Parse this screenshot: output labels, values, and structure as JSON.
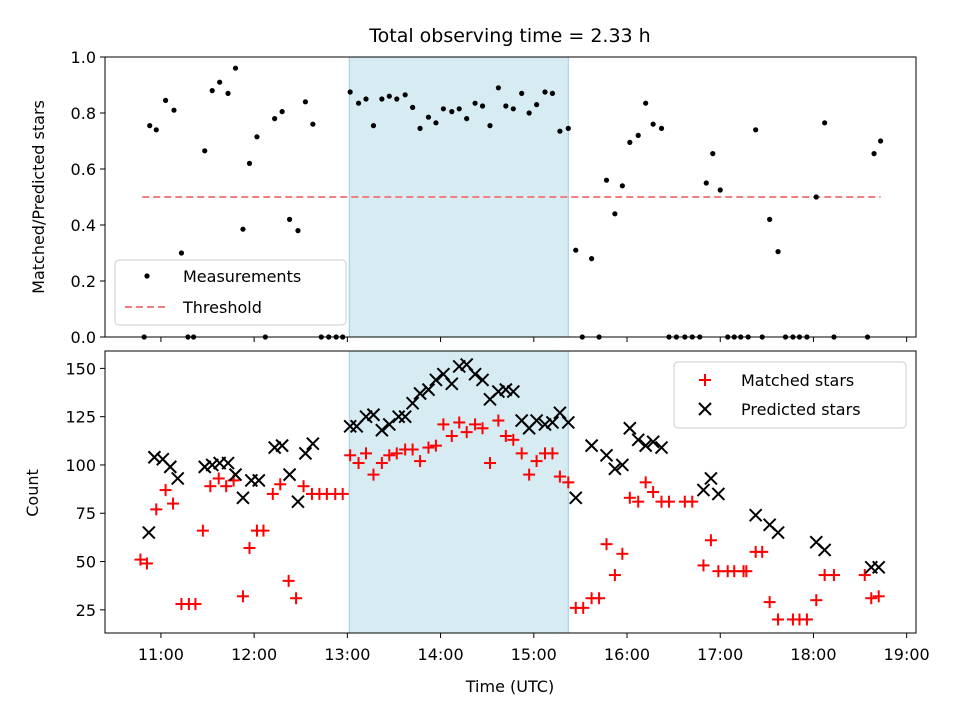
{
  "figure": {
    "title": "Total observing time = 2.33 h"
  },
  "chart_data": [
    {
      "type": "scatter",
      "panel": "top",
      "ylabel": "Matched/Predicted stars",
      "xlim": [
        10.4,
        19.1
      ],
      "ylim": [
        0,
        1.0
      ],
      "yticks": [
        0.0,
        0.2,
        0.4,
        0.6,
        0.8,
        1.0
      ],
      "ytick_labels": [
        "0.0",
        "0.2",
        "0.4",
        "0.6",
        "0.8",
        "1.0"
      ],
      "highlight_span": [
        13.02,
        15.37
      ],
      "highlight_color": "#add8e6",
      "legend": {
        "placement": "lower-left",
        "entries": [
          "Measurements",
          "Threshold"
        ]
      },
      "threshold": {
        "name": "Threshold",
        "value": 0.5,
        "x_range": [
          10.8,
          18.72
        ],
        "color": "#f08080",
        "style": "dashed"
      },
      "series": [
        {
          "name": "Measurements",
          "marker": "dot",
          "color": "#000000",
          "points": [
            [
              10.82,
              0.0
            ],
            [
              10.88,
              0.755
            ],
            [
              10.95,
              0.74
            ],
            [
              11.05,
              0.845
            ],
            [
              11.14,
              0.81
            ],
            [
              11.22,
              0.3
            ],
            [
              11.29,
              0.0
            ],
            [
              11.35,
              0.0
            ],
            [
              11.47,
              0.665
            ],
            [
              11.55,
              0.88
            ],
            [
              11.63,
              0.91
            ],
            [
              11.72,
              0.87
            ],
            [
              11.8,
              0.96
            ],
            [
              11.88,
              0.385
            ],
            [
              11.95,
              0.62
            ],
            [
              12.03,
              0.715
            ],
            [
              12.12,
              0.0
            ],
            [
              12.22,
              0.78
            ],
            [
              12.3,
              0.805
            ],
            [
              12.38,
              0.42
            ],
            [
              12.47,
              0.38
            ],
            [
              12.55,
              0.84
            ],
            [
              12.63,
              0.76
            ],
            [
              12.72,
              0.0
            ],
            [
              12.8,
              0.0
            ],
            [
              12.88,
              0.0
            ],
            [
              12.95,
              0.0
            ],
            [
              13.03,
              0.875
            ],
            [
              13.12,
              0.835
            ],
            [
              13.2,
              0.85
            ],
            [
              13.28,
              0.755
            ],
            [
              13.37,
              0.85
            ],
            [
              13.45,
              0.86
            ],
            [
              13.53,
              0.85
            ],
            [
              13.62,
              0.865
            ],
            [
              13.7,
              0.82
            ],
            [
              13.78,
              0.745
            ],
            [
              13.87,
              0.785
            ],
            [
              13.95,
              0.765
            ],
            [
              14.03,
              0.815
            ],
            [
              14.12,
              0.805
            ],
            [
              14.2,
              0.815
            ],
            [
              14.28,
              0.78
            ],
            [
              14.37,
              0.835
            ],
            [
              14.45,
              0.825
            ],
            [
              14.53,
              0.755
            ],
            [
              14.62,
              0.89
            ],
            [
              14.7,
              0.825
            ],
            [
              14.78,
              0.815
            ],
            [
              14.87,
              0.87
            ],
            [
              14.95,
              0.8
            ],
            [
              15.03,
              0.83
            ],
            [
              15.12,
              0.875
            ],
            [
              15.2,
              0.87
            ],
            [
              15.28,
              0.735
            ],
            [
              15.37,
              0.745
            ],
            [
              15.45,
              0.31
            ],
            [
              15.52,
              0.0
            ],
            [
              15.62,
              0.28
            ],
            [
              15.7,
              0.0
            ],
            [
              15.78,
              0.56
            ],
            [
              15.87,
              0.44
            ],
            [
              15.95,
              0.54
            ],
            [
              16.03,
              0.695
            ],
            [
              16.12,
              0.72
            ],
            [
              16.2,
              0.835
            ],
            [
              16.28,
              0.76
            ],
            [
              16.37,
              0.745
            ],
            [
              16.45,
              0.0
            ],
            [
              16.53,
              0.0
            ],
            [
              16.62,
              0.0
            ],
            [
              16.7,
              0.0
            ],
            [
              16.78,
              0.0
            ],
            [
              16.85,
              0.55
            ],
            [
              16.92,
              0.655
            ],
            [
              17.0,
              0.525
            ],
            [
              17.08,
              0.0
            ],
            [
              17.15,
              0.0
            ],
            [
              17.22,
              0.0
            ],
            [
              17.3,
              0.0
            ],
            [
              17.38,
              0.74
            ],
            [
              17.45,
              0.0
            ],
            [
              17.53,
              0.42
            ],
            [
              17.62,
              0.305
            ],
            [
              17.7,
              0.0
            ],
            [
              17.78,
              0.0
            ],
            [
              17.85,
              0.0
            ],
            [
              17.93,
              0.0
            ],
            [
              18.03,
              0.5
            ],
            [
              18.12,
              0.765
            ],
            [
              18.22,
              0.0
            ],
            [
              18.58,
              0.0
            ],
            [
              18.65,
              0.655
            ],
            [
              18.72,
              0.7
            ]
          ]
        }
      ]
    },
    {
      "type": "scatter",
      "panel": "bottom",
      "xlabel": "Time (UTC)",
      "ylabel": "Count",
      "xlim": [
        10.4,
        19.1
      ],
      "ylim": [
        13,
        159
      ],
      "xticks": [
        11,
        12,
        13,
        14,
        15,
        16,
        17,
        18,
        19
      ],
      "xtick_labels": [
        "11:00",
        "12:00",
        "13:00",
        "14:00",
        "15:00",
        "16:00",
        "17:00",
        "18:00",
        "19:00"
      ],
      "yticks": [
        25,
        50,
        75,
        100,
        125,
        150
      ],
      "ytick_labels": [
        "25",
        "50",
        "75",
        "100",
        "125",
        "150"
      ],
      "highlight_span": [
        13.02,
        15.37
      ],
      "highlight_color": "#add8e6",
      "legend": {
        "placement": "upper-right",
        "entries": [
          "Matched stars",
          "Predicted stars"
        ]
      },
      "series": [
        {
          "name": "Matched stars",
          "marker": "plus",
          "color": "#ff0000",
          "points": [
            [
              10.78,
              51
            ],
            [
              10.85,
              49
            ],
            [
              10.95,
              77
            ],
            [
              11.05,
              87
            ],
            [
              11.13,
              80
            ],
            [
              11.22,
              28
            ],
            [
              11.3,
              28
            ],
            [
              11.37,
              28
            ],
            [
              11.45,
              66
            ],
            [
              11.53,
              89
            ],
            [
              11.62,
              93
            ],
            [
              11.7,
              89
            ],
            [
              11.78,
              92
            ],
            [
              11.88,
              32
            ],
            [
              11.95,
              57
            ],
            [
              12.03,
              66
            ],
            [
              12.1,
              66
            ],
            [
              12.2,
              85
            ],
            [
              12.28,
              90
            ],
            [
              12.37,
              40
            ],
            [
              12.45,
              31
            ],
            [
              12.53,
              89
            ],
            [
              12.62,
              85
            ],
            [
              12.7,
              85
            ],
            [
              12.78,
              85
            ],
            [
              12.87,
              85
            ],
            [
              12.95,
              85
            ],
            [
              13.03,
              105
            ],
            [
              13.12,
              101
            ],
            [
              13.2,
              106
            ],
            [
              13.28,
              95
            ],
            [
              13.37,
              101
            ],
            [
              13.45,
              105
            ],
            [
              13.53,
              106
            ],
            [
              13.62,
              108
            ],
            [
              13.7,
              108
            ],
            [
              13.78,
              102
            ],
            [
              13.87,
              109
            ],
            [
              13.95,
              110
            ],
            [
              14.03,
              121
            ],
            [
              14.12,
              115
            ],
            [
              14.2,
              122
            ],
            [
              14.28,
              117
            ],
            [
              14.37,
              121
            ],
            [
              14.45,
              119
            ],
            [
              14.53,
              101
            ],
            [
              14.62,
              123
            ],
            [
              14.7,
              115
            ],
            [
              14.78,
              113
            ],
            [
              14.87,
              106
            ],
            [
              14.95,
              95
            ],
            [
              15.03,
              102
            ],
            [
              15.12,
              106
            ],
            [
              15.2,
              106
            ],
            [
              15.28,
              94
            ],
            [
              15.37,
              91
            ],
            [
              15.45,
              26
            ],
            [
              15.53,
              26
            ],
            [
              15.62,
              31
            ],
            [
              15.7,
              31
            ],
            [
              15.78,
              59
            ],
            [
              15.87,
              43
            ],
            [
              15.95,
              54
            ],
            [
              16.03,
              83
            ],
            [
              16.12,
              81
            ],
            [
              16.2,
              91
            ],
            [
              16.28,
              86
            ],
            [
              16.37,
              81
            ],
            [
              16.45,
              81
            ],
            [
              16.62,
              81
            ],
            [
              16.7,
              81
            ],
            [
              16.82,
              48
            ],
            [
              16.9,
              61
            ],
            [
              16.98,
              45
            ],
            [
              17.08,
              45
            ],
            [
              17.15,
              45
            ],
            [
              17.25,
              45
            ],
            [
              17.28,
              45
            ],
            [
              17.38,
              55
            ],
            [
              17.45,
              55
            ],
            [
              17.53,
              29
            ],
            [
              17.62,
              20
            ],
            [
              17.78,
              20
            ],
            [
              17.85,
              20
            ],
            [
              17.93,
              20
            ],
            [
              18.03,
              30
            ],
            [
              18.12,
              43
            ],
            [
              18.22,
              43
            ],
            [
              18.55,
              43
            ],
            [
              18.62,
              31
            ],
            [
              18.7,
              32
            ]
          ]
        },
        {
          "name": "Predicted stars",
          "marker": "x",
          "color": "#000000",
          "points": [
            [
              10.87,
              65
            ],
            [
              10.93,
              104
            ],
            [
              11.02,
              103
            ],
            [
              11.1,
              99
            ],
            [
              11.18,
              93
            ],
            [
              11.47,
              99
            ],
            [
              11.55,
              100
            ],
            [
              11.63,
              101
            ],
            [
              11.72,
              101
            ],
            [
              11.8,
              95
            ],
            [
              11.88,
              83
            ],
            [
              11.97,
              92
            ],
            [
              12.05,
              92
            ],
            [
              12.22,
              109
            ],
            [
              12.3,
              110
            ],
            [
              12.38,
              95
            ],
            [
              12.47,
              81
            ],
            [
              12.55,
              106
            ],
            [
              12.63,
              111
            ],
            [
              13.03,
              120
            ],
            [
              13.1,
              120
            ],
            [
              13.2,
              125
            ],
            [
              13.28,
              126
            ],
            [
              13.37,
              118
            ],
            [
              13.45,
              121
            ],
            [
              13.55,
              125
            ],
            [
              13.62,
              125
            ],
            [
              13.7,
              132
            ],
            [
              13.78,
              137
            ],
            [
              13.87,
              139
            ],
            [
              13.95,
              144
            ],
            [
              14.03,
              147
            ],
            [
              14.12,
              142
            ],
            [
              14.2,
              151
            ],
            [
              14.28,
              152
            ],
            [
              14.37,
              147
            ],
            [
              14.45,
              144
            ],
            [
              14.53,
              134
            ],
            [
              14.62,
              138
            ],
            [
              14.7,
              139
            ],
            [
              14.78,
              138
            ],
            [
              14.87,
              123
            ],
            [
              14.95,
              119
            ],
            [
              15.03,
              123
            ],
            [
              15.12,
              121
            ],
            [
              15.2,
              122
            ],
            [
              15.28,
              127
            ],
            [
              15.37,
              122
            ],
            [
              15.45,
              83
            ],
            [
              15.62,
              110
            ],
            [
              15.78,
              105
            ],
            [
              15.87,
              98
            ],
            [
              15.95,
              100
            ],
            [
              16.03,
              119
            ],
            [
              16.12,
              113
            ],
            [
              16.2,
              110
            ],
            [
              16.28,
              112
            ],
            [
              16.37,
              109
            ],
            [
              16.82,
              87
            ],
            [
              16.9,
              93
            ],
            [
              16.98,
              85
            ],
            [
              17.38,
              74
            ],
            [
              17.53,
              69
            ],
            [
              17.62,
              65
            ],
            [
              18.03,
              60
            ],
            [
              18.12,
              56
            ],
            [
              18.62,
              47
            ],
            [
              18.7,
              47
            ]
          ]
        }
      ]
    }
  ]
}
